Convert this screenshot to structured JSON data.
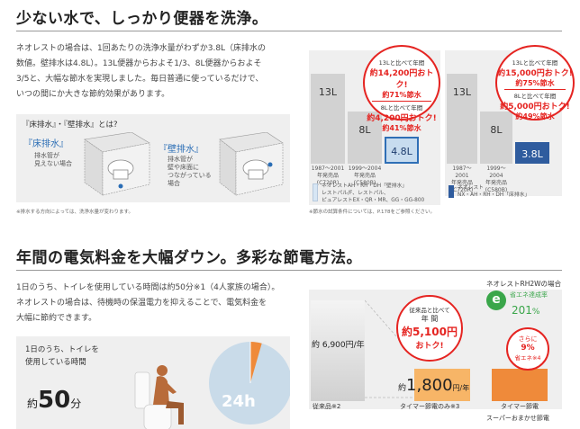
{
  "section1": {
    "title": "少ない水で、しっかり便器を洗浄。",
    "paragraph": [
      "ネオレストの場合は、1回あたりの洗浄水量がわずか3.8L（床排水の",
      "数値。壁排水は4.8L）。13L便器からおよそ1/3、8L便器からおよそ",
      "3/5と、大幅な節水を実現しました。毎日普通に使っているだけで、",
      "いつの間にか大きな節約効果があります。"
    ],
    "panel_title": "『床排水』・『壁排水』とは?",
    "floor_title": "『床排水』",
    "floor_desc": [
      "排水管が",
      "見えない場合"
    ],
    "wall_title": "『壁排水』",
    "wall_desc": [
      "排水管が",
      "壁や床面に",
      "つながっている",
      "場合"
    ],
    "footnote": "※排水する方向によっては、洗浄水量が変わります。"
  },
  "chart1": {
    "bars": [
      {
        "value": "13L",
        "label": [
          "1987〜2001",
          "年発売品",
          "(C720R)"
        ]
      },
      {
        "value": "8L",
        "label": [
          "1999〜2004",
          "年発売品",
          "(C580B)"
        ]
      },
      {
        "value": "4.8L",
        "label": []
      }
    ],
    "bubble_top": "13Lと比べて年間",
    "bubble_amount1": "約14,200円おトク!",
    "bubble_pct1": "約71%節水",
    "bubble_mid": "8Lと比べて年間",
    "bubble_amount2": "約4,200円おトク!",
    "bubble_pct2": "約41%節水",
    "legend": [
      "ネオレストAH・RH・DH「壁排水」",
      "レストパル/F、レストパル、",
      "ピュアレストEX・QR・MR、GG・GG-800"
    ],
    "footnote": "※節水の試算条件については、P.178をご参照ください。"
  },
  "chart2": {
    "bars": [
      {
        "value": "13L",
        "label": [
          "1987〜2001",
          "年発売品",
          "(C720R)"
        ]
      },
      {
        "value": "8L",
        "label": [
          "1999〜2004",
          "年発売品",
          "(C580B)"
        ]
      },
      {
        "value": "3.8L",
        "label": []
      }
    ],
    "bubble_top": "13Lと比べて年間",
    "bubble_amount1": "約15,000円おトク!",
    "bubble_pct1": "約75%節水",
    "bubble_mid": "8Lと比べて年間",
    "bubble_amount2": "約5,000円おトク!",
    "bubble_pct2": "約49%節水",
    "legend": [
      "ネオレスト",
      "NX・AH・RH・DH「床排水」"
    ]
  },
  "section2": {
    "title": "年間の電気料金を大幅ダウン。多彩な節電方法。",
    "paragraph": [
      "1日のうち、トイレを使用している時間は約50分※1（4人家族の場合）。",
      "ネオレストの場合は、待機時の保温電力を抑えることで、電気料金を",
      "大幅に節約できます。"
    ],
    "usage_label": [
      "1日のうち、トイレを",
      "使用している時間"
    ],
    "usage_prefix": "約",
    "usage_value": "50",
    "usage_unit": "分",
    "pie_label": "24h",
    "colors": {
      "pie": "#c9dbe9",
      "pie_slice": "#ef8a3a",
      "orange": "#f39a3c"
    }
  },
  "chart3": {
    "badge_title": "ネオレストRH2Wの場合",
    "badge_sub": "省エネ達成率",
    "badge_value": "201",
    "badge_unit": "%",
    "badge_icon": "e",
    "bar1_value": "約 6,900円/年",
    "bar1_label": "従来品※2",
    "bubble": [
      "従来品と比べて",
      "年 間",
      "約5,100円",
      "おトク!"
    ],
    "bar2_prefix": "約",
    "bar2_value": "1,800",
    "bar2_unit": "円/年",
    "bar2_label": "タイマー節電のみ※3",
    "small_bubble": [
      "さらに",
      "9%",
      "省エネ※4"
    ],
    "bar3_label": "タイマー節電",
    "bar3_label2": "スーパーおまかせ節電"
  }
}
